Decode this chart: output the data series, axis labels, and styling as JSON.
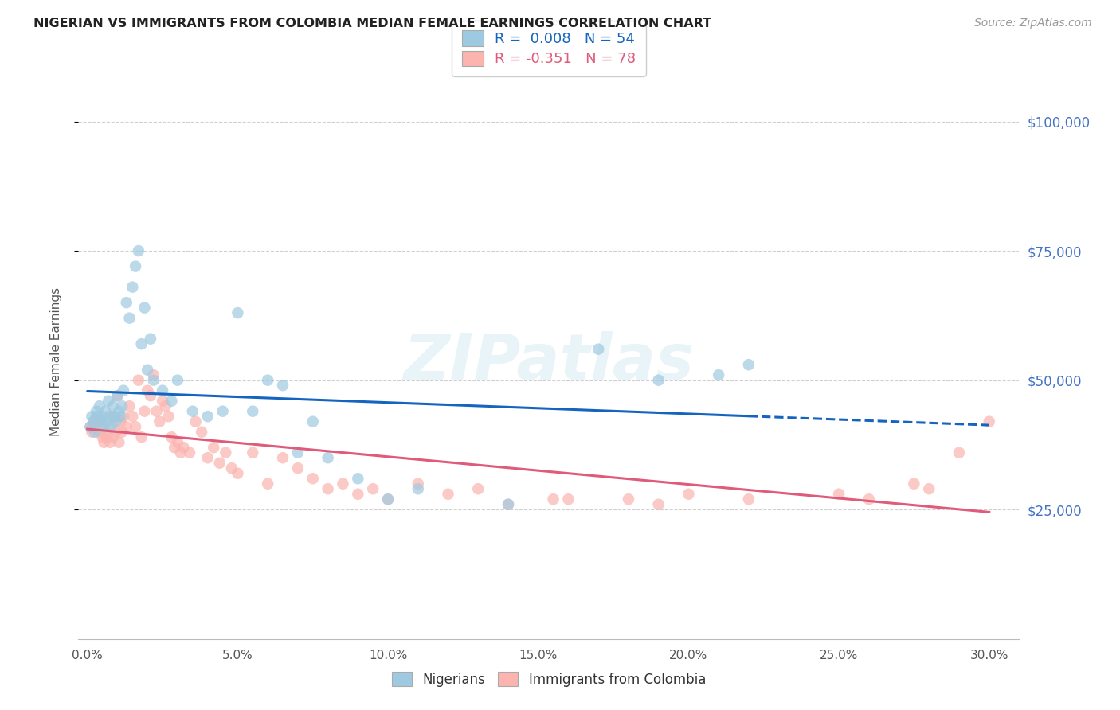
{
  "title": "NIGERIAN VS IMMIGRANTS FROM COLOMBIA MEDIAN FEMALE EARNINGS CORRELATION CHART",
  "source": "Source: ZipAtlas.com",
  "ylabel": "Median Female Earnings",
  "xlabel_labels": [
    "0.0%",
    "5.0%",
    "10.0%",
    "15.0%",
    "20.0%",
    "25.0%",
    "30.0%"
  ],
  "xlabel_vals": [
    0,
    5,
    10,
    15,
    20,
    25,
    30
  ],
  "ytick_vals": [
    25000,
    50000,
    75000,
    100000
  ],
  "ytick_labels": [
    "$25,000",
    "$50,000",
    "$75,000",
    "$100,000"
  ],
  "ylim": [
    0,
    107000
  ],
  "xlim": [
    -0.3,
    31
  ],
  "legend_r1": "R =  0.008   N = 54",
  "legend_r2": "R = -0.351   N = 78",
  "legend_label1": "Nigerians",
  "legend_label2": "Immigrants from Colombia",
  "blue_scatter": "#9ecae1",
  "pink_scatter": "#fbb4ae",
  "trend_blue": "#1565c0",
  "trend_pink": "#e05a7a",
  "watermark": "ZIPatlas",
  "nigerian_x": [
    0.1,
    0.15,
    0.2,
    0.25,
    0.3,
    0.35,
    0.4,
    0.45,
    0.5,
    0.55,
    0.6,
    0.65,
    0.7,
    0.75,
    0.8,
    0.85,
    0.9,
    0.95,
    1.0,
    1.05,
    1.1,
    1.15,
    1.2,
    1.3,
    1.4,
    1.5,
    1.6,
    1.7,
    1.8,
    1.9,
    2.0,
    2.1,
    2.2,
    2.5,
    2.8,
    3.0,
    3.5,
    4.0,
    4.5,
    5.0,
    5.5,
    6.0,
    6.5,
    7.0,
    7.5,
    8.0,
    9.0,
    10.0,
    11.0,
    14.0,
    17.0,
    19.0,
    21.0,
    22.0
  ],
  "nigerian_y": [
    41000,
    43000,
    42000,
    40000,
    44000,
    43000,
    45000,
    42000,
    43000,
    41000,
    44000,
    42000,
    46000,
    41000,
    43000,
    45000,
    43000,
    42000,
    47000,
    44000,
    43000,
    45000,
    48000,
    65000,
    62000,
    68000,
    72000,
    75000,
    57000,
    64000,
    52000,
    58000,
    50000,
    48000,
    46000,
    50000,
    44000,
    43000,
    44000,
    63000,
    44000,
    50000,
    49000,
    36000,
    42000,
    35000,
    31000,
    27000,
    29000,
    26000,
    56000,
    50000,
    51000,
    53000
  ],
  "colombia_x": [
    0.1,
    0.15,
    0.2,
    0.25,
    0.3,
    0.35,
    0.4,
    0.45,
    0.5,
    0.55,
    0.6,
    0.65,
    0.7,
    0.75,
    0.8,
    0.85,
    0.9,
    0.95,
    1.0,
    1.05,
    1.1,
    1.15,
    1.2,
    1.3,
    1.4,
    1.5,
    1.6,
    1.7,
    1.8,
    1.9,
    2.0,
    2.1,
    2.2,
    2.3,
    2.4,
    2.5,
    2.6,
    2.7,
    2.8,
    2.9,
    3.0,
    3.1,
    3.2,
    3.4,
    3.6,
    3.8,
    4.0,
    4.2,
    4.4,
    4.6,
    4.8,
    5.0,
    5.5,
    6.0,
    6.5,
    7.0,
    7.5,
    8.0,
    8.5,
    9.0,
    9.5,
    10.0,
    11.0,
    12.0,
    13.0,
    14.0,
    16.0,
    18.0,
    19.0,
    20.0,
    22.0,
    25.0,
    26.0,
    27.5,
    28.0,
    29.0,
    30.0,
    15.5
  ],
  "colombia_y": [
    41000,
    40000,
    42000,
    41000,
    43000,
    42000,
    40000,
    41000,
    39000,
    38000,
    40000,
    39000,
    43000,
    38000,
    41000,
    39000,
    43000,
    40000,
    47000,
    38000,
    42000,
    40000,
    43000,
    41000,
    45000,
    43000,
    41000,
    50000,
    39000,
    44000,
    48000,
    47000,
    51000,
    44000,
    42000,
    46000,
    45000,
    43000,
    39000,
    37000,
    38000,
    36000,
    37000,
    36000,
    42000,
    40000,
    35000,
    37000,
    34000,
    36000,
    33000,
    32000,
    36000,
    30000,
    35000,
    33000,
    31000,
    29000,
    30000,
    28000,
    29000,
    27000,
    30000,
    28000,
    29000,
    26000,
    27000,
    27000,
    26000,
    28000,
    27000,
    28000,
    27000,
    30000,
    29000,
    36000,
    42000,
    27000
  ]
}
